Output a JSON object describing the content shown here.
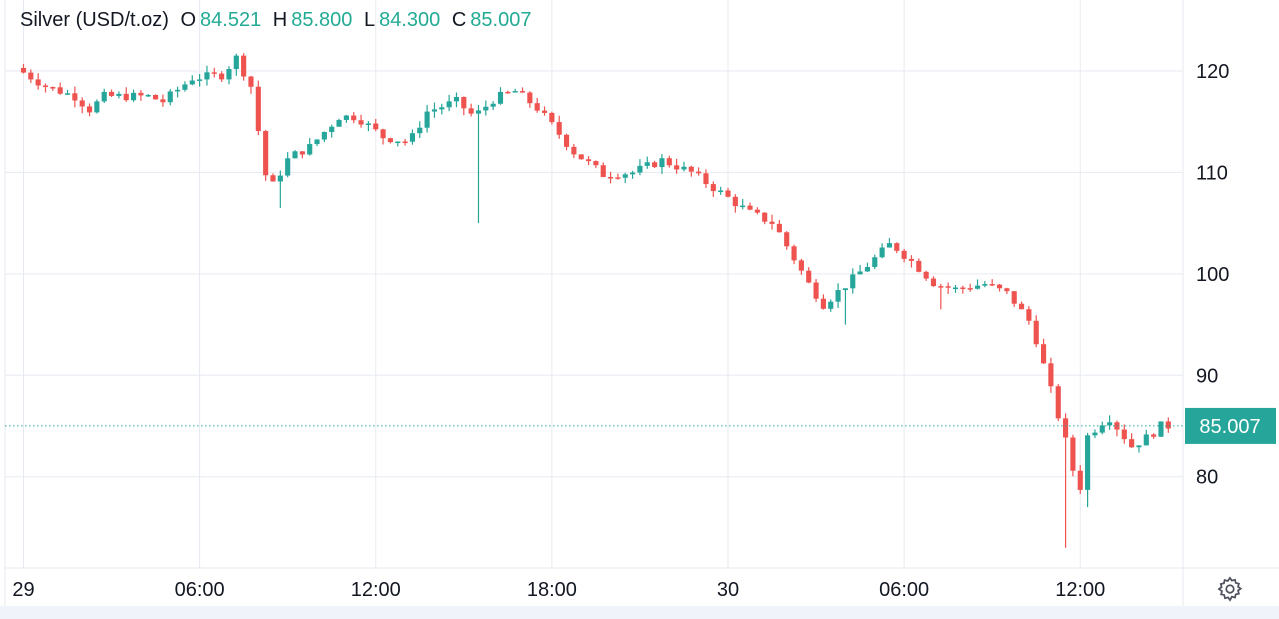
{
  "legend": {
    "symbol": "Silver (USD/t.oz)",
    "open_label": "O",
    "open": "84.521",
    "high_label": "H",
    "high": "85.800",
    "low_label": "L",
    "low": "84.300",
    "close_label": "C",
    "close": "85.007"
  },
  "colors": {
    "up": "#26a69a",
    "down": "#ef5350",
    "grid": "#e6eaf0",
    "text": "#131722",
    "badge": "#26a69a"
  },
  "settings_icon": "gear-icon",
  "chart_data": {
    "type": "candlestick",
    "title": "Silver (USD/t.oz)",
    "y_ticks": [
      80,
      90,
      100,
      110,
      120
    ],
    "ylim": [
      71,
      127
    ],
    "x_ticks": [
      "29",
      "06:00",
      "12:00",
      "18:00",
      "30",
      "06:00",
      "12:00"
    ],
    "x_tick_hours": [
      0,
      6,
      12,
      18,
      24,
      30,
      36
    ],
    "xlim_hours": [
      -0.8,
      39.5
    ],
    "last_price": "85.007",
    "last_price_value": 85.007,
    "grid": true,
    "series_anchor_points": [
      {
        "t": 0.0,
        "p": 120.3
      },
      {
        "t": 1.0,
        "p": 118.5
      },
      {
        "t": 2.0,
        "p": 117.5
      },
      {
        "t": 2.5,
        "p": 116.2
      },
      {
        "t": 3.0,
        "p": 117.5
      },
      {
        "t": 4.5,
        "p": 117.5
      },
      {
        "t": 5.0,
        "p": 117.0
      },
      {
        "t": 6.0,
        "p": 119.3
      },
      {
        "t": 7.0,
        "p": 119.6
      },
      {
        "t": 7.5,
        "p": 121.3
      },
      {
        "t": 8.0,
        "p": 118.5
      },
      {
        "t": 8.6,
        "p": 108.0
      },
      {
        "t": 9.3,
        "p": 111.5
      },
      {
        "t": 10.0,
        "p": 112.5
      },
      {
        "t": 11.0,
        "p": 115.5
      },
      {
        "t": 11.6,
        "p": 115.5
      },
      {
        "t": 12.5,
        "p": 113.5
      },
      {
        "t": 13.4,
        "p": 113.0
      },
      {
        "t": 14.0,
        "p": 116.0
      },
      {
        "t": 15.0,
        "p": 117.0
      },
      {
        "t": 15.6,
        "p": 115.5
      },
      {
        "t": 16.3,
        "p": 117.3
      },
      {
        "t": 17.0,
        "p": 118.0
      },
      {
        "t": 17.7,
        "p": 116.5
      },
      {
        "t": 18.3,
        "p": 114.5
      },
      {
        "t": 19.0,
        "p": 112.0
      },
      {
        "t": 20.0,
        "p": 109.8
      },
      {
        "t": 21.0,
        "p": 110.0
      },
      {
        "t": 22.0,
        "p": 111.2
      },
      {
        "t": 23.0,
        "p": 110.0
      },
      {
        "t": 24.0,
        "p": 108.0
      },
      {
        "t": 25.0,
        "p": 106.0
      },
      {
        "t": 25.8,
        "p": 105.0
      },
      {
        "t": 27.0,
        "p": 99.0
      },
      {
        "t": 27.5,
        "p": 97.0
      },
      {
        "t": 28.5,
        "p": 99.5
      },
      {
        "t": 29.8,
        "p": 103.0
      },
      {
        "t": 30.6,
        "p": 101.0
      },
      {
        "t": 31.3,
        "p": 99.0
      },
      {
        "t": 32.0,
        "p": 98.5
      },
      {
        "t": 33.0,
        "p": 99.0
      },
      {
        "t": 33.8,
        "p": 98.0
      },
      {
        "t": 34.6,
        "p": 95.0
      },
      {
        "t": 35.3,
        "p": 88.0
      },
      {
        "t": 35.9,
        "p": 82.0
      },
      {
        "t": 36.2,
        "p": 78.0
      },
      {
        "t": 36.5,
        "p": 84.0
      },
      {
        "t": 37.2,
        "p": 86.0
      },
      {
        "t": 38.0,
        "p": 83.0
      },
      {
        "t": 38.6,
        "p": 84.0
      },
      {
        "t": 39.0,
        "p": 85.0
      }
    ],
    "spikes": [
      {
        "t": 8.8,
        "low": 106.5
      },
      {
        "t": 15.6,
        "low": 105.0
      },
      {
        "t": 27.9,
        "low": 95.0
      },
      {
        "t": 31.3,
        "low": 96.5
      },
      {
        "t": 35.6,
        "low": 73.0
      },
      {
        "t": 36.3,
        "low": 77.0
      }
    ]
  }
}
